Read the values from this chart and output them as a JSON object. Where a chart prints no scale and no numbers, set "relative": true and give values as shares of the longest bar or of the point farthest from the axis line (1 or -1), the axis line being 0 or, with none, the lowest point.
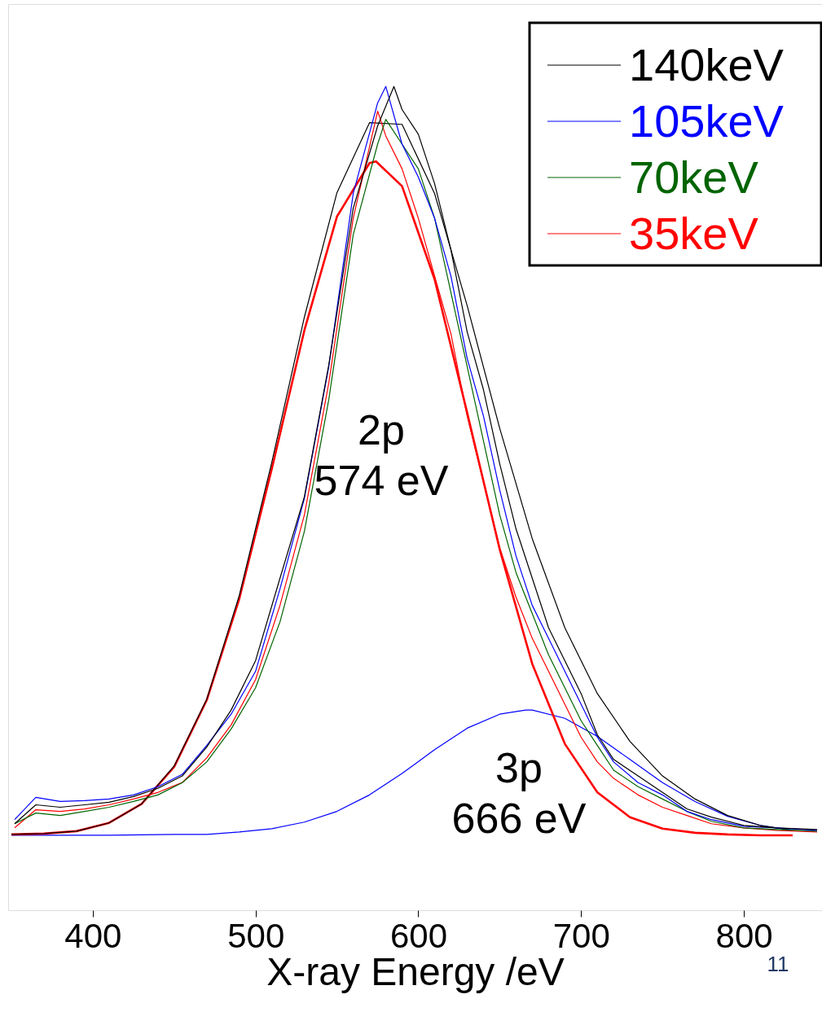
{
  "chart_data": {
    "type": "line",
    "xlabel": "X-ray Energy /eV",
    "relative": true,
    "xlim": [
      348,
      848
    ],
    "xticks": [
      400,
      500,
      600,
      700,
      800
    ],
    "legend": "top right",
    "grid": false,
    "series": [
      {
        "name": "140keV",
        "color": "#000000",
        "x": [
          352,
          365,
          380,
          395,
          410,
          425,
          440,
          455,
          470,
          485,
          500,
          515,
          530,
          545,
          560,
          575,
          585,
          590,
          600,
          610,
          620,
          630,
          640,
          650,
          660,
          670,
          680,
          690,
          700,
          710,
          720,
          735,
          750,
          765,
          780,
          800,
          820,
          845
        ],
        "values": [
          0.105,
          0.128,
          0.125,
          0.128,
          0.131,
          0.138,
          0.148,
          0.163,
          0.198,
          0.243,
          0.303,
          0.403,
          0.502,
          0.662,
          0.852,
          0.952,
          1.0,
          0.972,
          0.942,
          0.882,
          0.802,
          0.702,
          0.632,
          0.542,
          0.463,
          0.403,
          0.343,
          0.303,
          0.263,
          0.213,
          0.183,
          0.163,
          0.143,
          0.123,
          0.113,
          0.103,
          0.1,
          0.098
        ]
      },
      {
        "name": "105keV",
        "color": "#0000ff",
        "x": [
          352,
          365,
          380,
          395,
          410,
          425,
          440,
          455,
          470,
          485,
          500,
          515,
          530,
          545,
          560,
          575,
          580,
          590,
          600,
          610,
          620,
          630,
          640,
          650,
          660,
          670,
          680,
          690,
          700,
          710,
          720,
          735,
          750,
          765,
          780,
          800,
          820,
          845
        ],
        "values": [
          0.11,
          0.137,
          0.132,
          0.133,
          0.135,
          0.14,
          0.15,
          0.165,
          0.2,
          0.238,
          0.29,
          0.39,
          0.5,
          0.66,
          0.87,
          0.98,
          1.0,
          0.93,
          0.89,
          0.84,
          0.77,
          0.67,
          0.6,
          0.51,
          0.43,
          0.37,
          0.33,
          0.29,
          0.25,
          0.21,
          0.18,
          0.155,
          0.14,
          0.12,
          0.11,
          0.102,
          0.1,
          0.097
        ]
      },
      {
        "name": "70keV",
        "color": "#006400",
        "x": [
          352,
          365,
          380,
          395,
          410,
          425,
          440,
          455,
          470,
          485,
          500,
          515,
          530,
          545,
          560,
          575,
          580,
          590,
          600,
          610,
          620,
          630,
          640,
          650,
          660,
          670,
          680,
          690,
          700,
          710,
          720,
          735,
          750,
          765,
          780,
          800,
          820,
          845
        ],
        "values": [
          0.105,
          0.118,
          0.115,
          0.12,
          0.125,
          0.132,
          0.14,
          0.155,
          0.18,
          0.22,
          0.27,
          0.35,
          0.46,
          0.62,
          0.82,
          0.93,
          0.96,
          0.93,
          0.9,
          0.84,
          0.75,
          0.66,
          0.57,
          0.48,
          0.41,
          0.36,
          0.31,
          0.27,
          0.23,
          0.2,
          0.17,
          0.15,
          0.135,
          0.12,
          0.108,
          0.1,
          0.098,
          0.096
        ]
      },
      {
        "name": "35keV",
        "color": "#ff0000",
        "x": [
          352,
          365,
          380,
          395,
          410,
          425,
          440,
          455,
          470,
          485,
          500,
          515,
          530,
          545,
          560,
          575,
          580,
          590,
          600,
          610,
          620,
          630,
          640,
          650,
          660,
          670,
          680,
          690,
          700,
          710,
          720,
          735,
          750,
          765,
          780,
          800,
          820,
          845
        ],
        "values": [
          0.1,
          0.122,
          0.12,
          0.123,
          0.128,
          0.135,
          0.143,
          0.155,
          0.185,
          0.225,
          0.28,
          0.37,
          0.48,
          0.64,
          0.84,
          0.97,
          0.94,
          0.9,
          0.84,
          0.77,
          0.7,
          0.6,
          0.52,
          0.44,
          0.38,
          0.33,
          0.29,
          0.25,
          0.21,
          0.18,
          0.16,
          0.14,
          0.125,
          0.115,
          0.105,
          0.1,
          0.097,
          0.095
        ]
      },
      {
        "color": "#000000",
        "x": [
          350,
          370,
          390,
          410,
          430,
          450,
          470,
          490,
          510,
          530,
          550,
          570,
          590,
          610,
          630,
          650,
          670,
          690,
          710,
          730,
          750,
          770,
          790,
          810,
          830
        ],
        "values": [
          0.092,
          0.093,
          0.096,
          0.106,
          0.129,
          0.175,
          0.256,
          0.382,
          0.544,
          0.72,
          0.871,
          0.956,
          0.954,
          0.87,
          0.734,
          0.585,
          0.451,
          0.343,
          0.263,
          0.205,
          0.163,
          0.135,
          0.115,
          0.103,
          0.097
        ]
      },
      {
        "color": "#ff0000",
        "x": [
          350,
          370,
          390,
          410,
          430,
          450,
          470,
          490,
          510,
          530,
          550,
          570,
          574,
          590,
          610,
          630,
          650,
          670,
          690,
          710,
          730,
          750,
          770,
          790,
          810,
          830
        ],
        "values": [
          0.092,
          0.093,
          0.096,
          0.106,
          0.129,
          0.174,
          0.255,
          0.378,
          0.536,
          0.704,
          0.842,
          0.907,
          0.909,
          0.879,
          0.766,
          0.604,
          0.438,
          0.299,
          0.202,
          0.143,
          0.113,
          0.099,
          0.094,
          0.092,
          0.091,
          0.091
        ]
      },
      {
        "color": "#0000ff",
        "x": [
          350,
          410,
          450,
          470,
          490,
          510,
          530,
          550,
          570,
          590,
          610,
          630,
          650,
          666,
          670,
          690,
          710,
          730,
          750,
          770,
          790,
          810,
          830
        ],
        "values": [
          0.091,
          0.091,
          0.092,
          0.092,
          0.095,
          0.099,
          0.107,
          0.12,
          0.14,
          0.166,
          0.195,
          0.221,
          0.238,
          0.243,
          0.243,
          0.233,
          0.211,
          0.183,
          0.155,
          0.132,
          0.114,
          0.103,
          0.097
        ]
      }
    ],
    "annotations": [
      "2p\n574 eV",
      "3p\n666 eV",
      "11"
    ]
  }
}
